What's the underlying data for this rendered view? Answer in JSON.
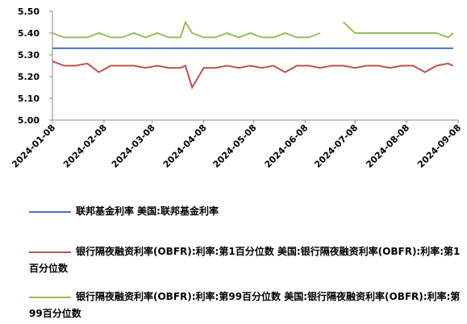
{
  "chart_data": {
    "type": "line",
    "x": [
      "2024-01-08",
      "2024-01-15",
      "2024-01-22",
      "2024-01-29",
      "2024-02-05",
      "2024-02-12",
      "2024-02-19",
      "2024-02-26",
      "2024-03-04",
      "2024-03-11",
      "2024-03-18",
      "2024-03-25",
      "2024-03-28",
      "2024-04-01",
      "2024-04-08",
      "2024-04-15",
      "2024-04-22",
      "2024-04-29",
      "2024-05-06",
      "2024-05-13",
      "2024-05-20",
      "2024-05-27",
      "2024-06-03",
      "2024-06-10",
      "2024-06-17",
      "2024-06-24",
      "2024-07-01",
      "2024-07-08",
      "2024-07-15",
      "2024-07-22",
      "2024-07-29",
      "2024-08-05",
      "2024-08-12",
      "2024-08-19",
      "2024-08-26",
      "2024-09-02",
      "2024-09-05"
    ],
    "series": [
      {
        "name": "联邦基金利率 美国:联邦基金利率",
        "color": "#4472c4",
        "values": [
          5.33,
          5.33,
          5.33,
          5.33,
          5.33,
          5.33,
          5.33,
          5.33,
          5.33,
          5.33,
          5.33,
          5.33,
          5.33,
          5.33,
          5.33,
          5.33,
          5.33,
          5.33,
          5.33,
          5.33,
          5.33,
          5.33,
          5.33,
          5.33,
          5.33,
          5.33,
          5.33,
          5.33,
          5.33,
          5.33,
          5.33,
          5.33,
          5.33,
          5.33,
          5.33,
          5.33,
          5.33
        ]
      },
      {
        "name": "银行隔夜融资利率(OBFR):利率:第1百分位数 美国:银行隔夜融资利率(OBFR):利率:第1百分位数",
        "color": "#c0504d",
        "values": [
          5.27,
          5.25,
          5.25,
          5.26,
          5.22,
          5.25,
          5.25,
          5.25,
          5.24,
          5.25,
          5.24,
          5.24,
          5.25,
          5.15,
          5.24,
          5.24,
          5.25,
          5.24,
          5.25,
          5.24,
          5.25,
          5.22,
          5.25,
          5.25,
          5.24,
          5.25,
          5.25,
          5.24,
          5.25,
          5.25,
          5.24,
          5.25,
          5.25,
          5.22,
          5.25,
          5.26,
          5.25
        ]
      },
      {
        "name": "银行隔夜融资利率(OBFR):利率:第99百分位数 美国:银行隔夜融资利率(OBFR):利率:第99百分位数",
        "color": "#9bbb59",
        "values": [
          5.4,
          5.38,
          5.38,
          5.38,
          5.4,
          5.38,
          5.38,
          5.4,
          5.38,
          5.4,
          5.38,
          5.38,
          5.45,
          5.4,
          5.38,
          5.38,
          5.4,
          5.38,
          5.4,
          5.38,
          5.38,
          5.4,
          5.38,
          5.38,
          5.4,
          null,
          5.45,
          5.4,
          5.4,
          5.4,
          5.4,
          5.4,
          5.4,
          5.4,
          5.4,
          5.38,
          5.4
        ]
      }
    ],
    "ylim": [
      5.0,
      5.5
    ],
    "yticks": [
      {
        "value": 5.0,
        "label": "5.00"
      },
      {
        "value": 5.1,
        "label": "5.10"
      },
      {
        "value": 5.2,
        "label": "5.20"
      },
      {
        "value": 5.3,
        "label": "5.30"
      },
      {
        "value": 5.4,
        "label": "5.40"
      },
      {
        "value": 5.5,
        "label": "5.50"
      }
    ],
    "xlim": [
      "2024-01-08",
      "2024-09-08"
    ],
    "xticks": [
      "2024-01-08",
      "2024-02-08",
      "2024-03-08",
      "2024-04-08",
      "2024-05-08",
      "2024-06-08",
      "2024-07-08",
      "2024-08-08",
      "2024-09-08"
    ]
  }
}
